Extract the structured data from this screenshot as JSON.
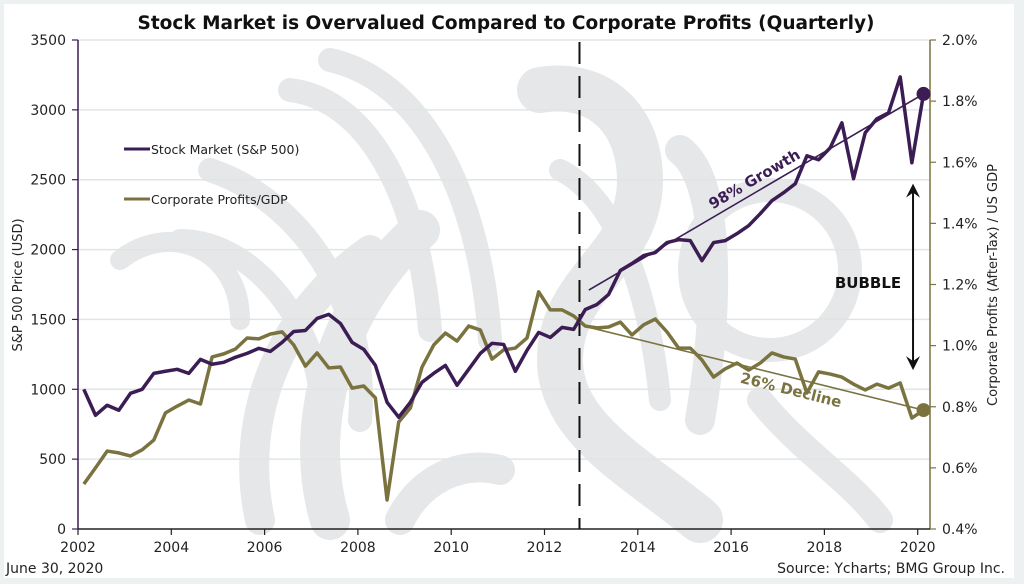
{
  "chart_data": {
    "type": "line",
    "title": "Stock Market is Overvalued Compared to Corporate Profits (Quarterly)",
    "xlabel": "",
    "ylabel_left": "S&P 500 Price (USD)",
    "ylabel_right": "Corporate Profits (After-Tax) / US GDP",
    "x_start": 2002.125,
    "x_step": 0.25,
    "xlim": [
      2002,
      2020.25
    ],
    "ylim_left": [
      0,
      3500
    ],
    "ylim_right": [
      0.4,
      2.0
    ],
    "x_ticks": [
      "2002",
      "2004",
      "2006",
      "2008",
      "2010",
      "2012",
      "2014",
      "2016",
      "2018",
      "2020"
    ],
    "x_tick_values": [
      2002,
      2004,
      2006,
      2008,
      2010,
      2012,
      2014,
      2016,
      2018,
      2020
    ],
    "y_ticks_left": [
      "0",
      "500",
      "1000",
      "1500",
      "2000",
      "2500",
      "3000",
      "3500"
    ],
    "y_tick_values_left": [
      0,
      500,
      1000,
      1500,
      2000,
      2500,
      3000,
      3500
    ],
    "y_ticks_right": [
      "0.4%",
      "0.6%",
      "0.8%",
      "1.0%",
      "1.2%",
      "1.4%",
      "1.6%",
      "1.8%",
      "2.0%"
    ],
    "y_tick_values_right": [
      0.4,
      0.6,
      0.8,
      1.0,
      1.2,
      1.4,
      1.6,
      1.8,
      2.0
    ],
    "grid": true,
    "legend_position": "upper-left",
    "series": [
      {
        "name": "Stock Market (S&P 500)",
        "axis": "left",
        "color": "#3b1d54",
        "values": [
          1000,
          814,
          886,
          850,
          971,
          1000,
          1114,
          1129,
          1143,
          1114,
          1214,
          1179,
          1193,
          1229,
          1257,
          1293,
          1271,
          1336,
          1414,
          1421,
          1507,
          1536,
          1471,
          1336,
          1286,
          1171,
          907,
          800,
          907,
          1050,
          1114,
          1171,
          1029,
          1143,
          1257,
          1329,
          1321,
          1129,
          1279,
          1407,
          1371,
          1443,
          1429,
          1571,
          1607,
          1679,
          1850,
          1900,
          1957,
          1979,
          2050,
          2071,
          2064,
          1921,
          2050,
          2064,
          2114,
          2171,
          2257,
          2350,
          2407,
          2471,
          2671,
          2643,
          2729,
          2907,
          2507,
          2836,
          2936,
          2979,
          3236,
          2621,
          3114
        ]
      },
      {
        "name": "Corporate Profits/GDP",
        "axis": "right",
        "unit": "%",
        "color": "#7a7340",
        "values": [
          0.547,
          0.6,
          0.655,
          0.649,
          0.639,
          0.659,
          0.691,
          0.78,
          0.802,
          0.822,
          0.809,
          0.963,
          0.973,
          0.989,
          1.025,
          1.022,
          1.038,
          1.045,
          1.002,
          0.933,
          0.976,
          0.927,
          0.93,
          0.861,
          0.868,
          0.829,
          0.495,
          0.75,
          0.796,
          0.93,
          1.002,
          1.041,
          1.015,
          1.064,
          1.051,
          0.956,
          0.986,
          0.992,
          1.025,
          1.176,
          1.117,
          1.117,
          1.097,
          1.064,
          1.058,
          1.061,
          1.077,
          1.035,
          1.068,
          1.087,
          1.045,
          0.992,
          0.992,
          0.953,
          0.897,
          0.924,
          0.943,
          0.92,
          0.943,
          0.976,
          0.963,
          0.956,
          0.845,
          0.914,
          0.907,
          0.897,
          0.874,
          0.855,
          0.874,
          0.861,
          0.878,
          0.763,
          0.789
        ]
      }
    ],
    "annotations": {
      "divider_x": 2012.75,
      "growth_label": "98% Growth",
      "growth_trend": {
        "from": [
          2012.95,
          1710
        ],
        "to": [
          2020.125,
          3114
        ]
      },
      "decline_label": "26% Decline",
      "decline_trend": {
        "from": [
          2012.95,
          1.06
        ],
        "to": [
          2020.125,
          0.789
        ]
      },
      "bubble_label": "BUBBLE",
      "bubble_arrow": {
        "x": 2019.9,
        "from_pct": 1.53,
        "to_pct": 0.92
      }
    }
  },
  "footer": {
    "date": "June 30, 2020",
    "source": "Source: Ycharts; BMG Group Inc."
  },
  "colors": {
    "stock": "#3b1d54",
    "profits": "#7a7340",
    "grid": "#dfe5e5",
    "watermark": "#e6e7e8"
  }
}
